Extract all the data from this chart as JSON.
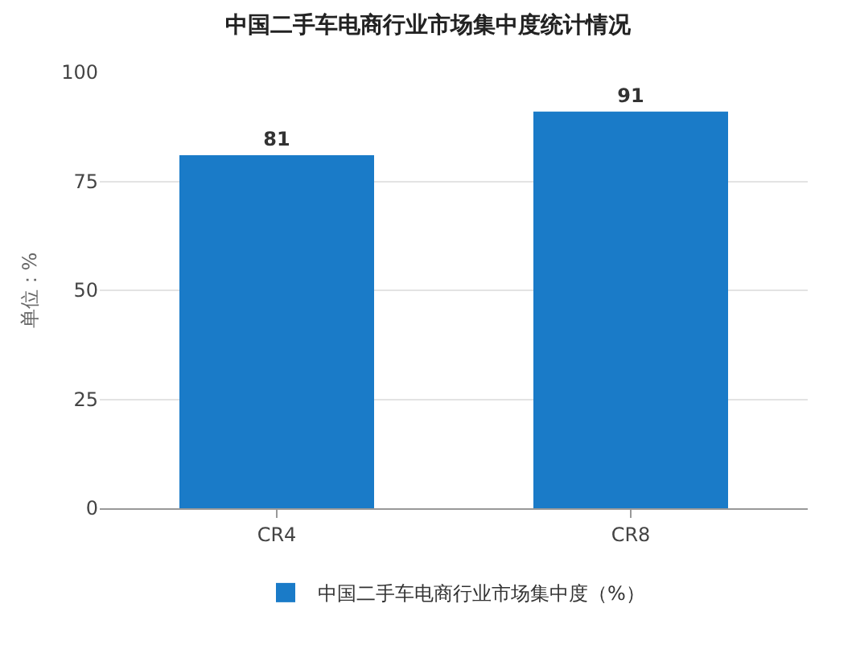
{
  "chart_data": {
    "type": "bar",
    "title": "中国二手车电商行业市场集中度统计情况",
    "ylabel": "单位：%",
    "categories": [
      "CR4",
      "CR8"
    ],
    "series": [
      {
        "name": "中国二手车电商行业市场集中度（%）",
        "color": "#1a7bc8",
        "values": [
          81,
          91
        ]
      }
    ],
    "ylim": [
      0,
      100
    ],
    "yticks": [
      0,
      25,
      50,
      75,
      100
    ],
    "grid": "y",
    "legend": "bottom",
    "data_labels": true
  }
}
